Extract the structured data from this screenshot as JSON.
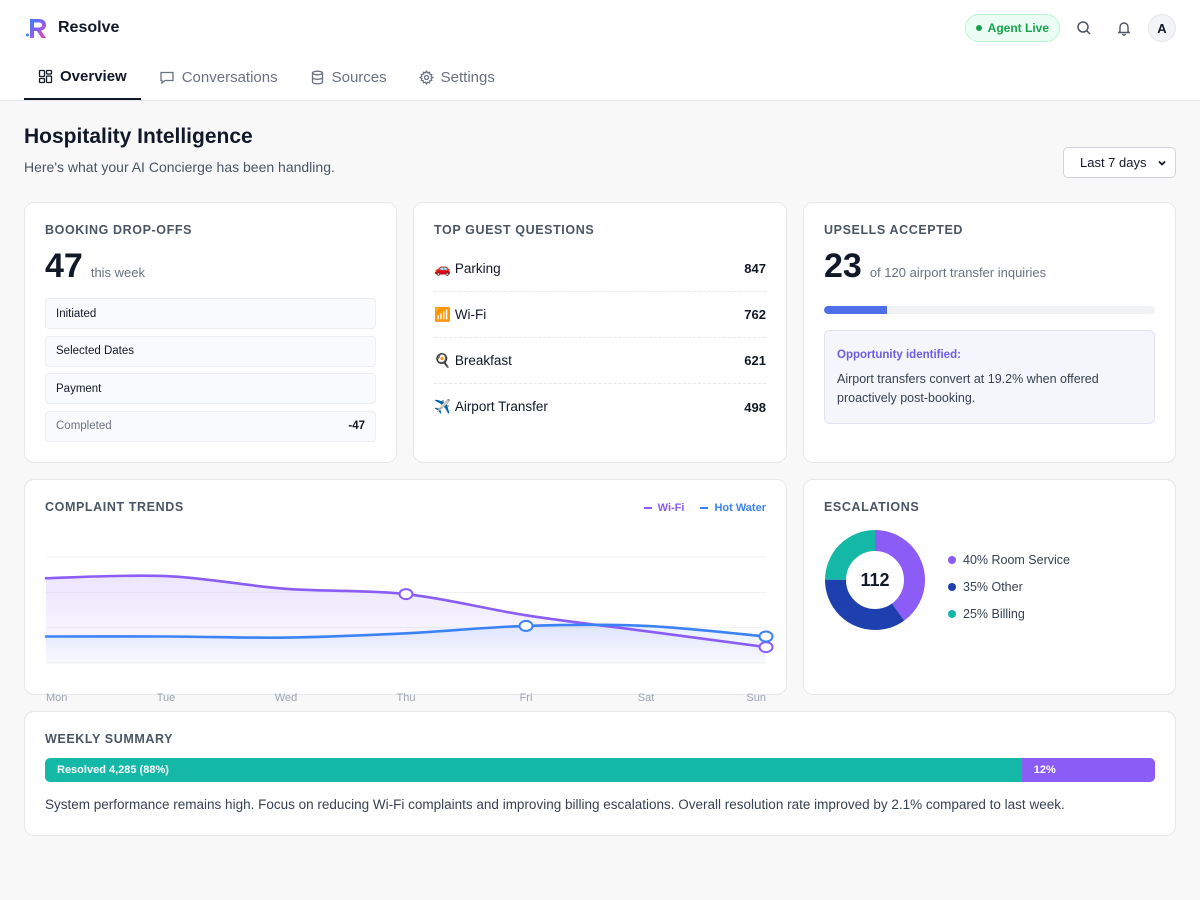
{
  "brand": {
    "name": "Resolve"
  },
  "header": {
    "status_label": "Agent Live",
    "avatar_initial": "A"
  },
  "tabs": [
    {
      "label": "Overview",
      "icon": "dashboard-icon"
    },
    {
      "label": "Conversations",
      "icon": "chat-icon"
    },
    {
      "label": "Sources",
      "icon": "database-icon"
    },
    {
      "label": "Settings",
      "icon": "gear-icon"
    }
  ],
  "page": {
    "title": "Hospitality Intelligence",
    "subtitle": "Here's what your AI Concierge has been handling.",
    "range": "Last 7 days"
  },
  "booking": {
    "title": "BOOKING DROP-OFFS",
    "value": "47",
    "suffix": "this week",
    "funnel": [
      {
        "label": "Initiated",
        "value": ""
      },
      {
        "label": "Selected Dates",
        "value": ""
      },
      {
        "label": "Payment",
        "value": ""
      },
      {
        "label": "Completed",
        "value": "-47"
      }
    ]
  },
  "questions": {
    "title": "TOP GUEST QUESTIONS",
    "items": [
      {
        "emoji": "🚗",
        "label": "Parking",
        "count": "847"
      },
      {
        "emoji": "📶",
        "label": "Wi-Fi",
        "count": "762"
      },
      {
        "emoji": "🍳",
        "label": "Breakfast",
        "count": "621"
      },
      {
        "emoji": "✈️",
        "label": "Airport Transfer",
        "count": "498"
      }
    ]
  },
  "upsells": {
    "title": "UPSELLS ACCEPTED",
    "value": "23",
    "suffix": "of 120 airport transfer inquiries",
    "progress": 0.19,
    "insight_head": "Opportunity identified:",
    "insight_body": "Airport transfers convert at 19.2% when offered proactively post-booking."
  },
  "complaints": {
    "title": "COMPLAINT TRENDS",
    "colors": {
      "wifi": "#8b5cf6",
      "water": "#3b82f6"
    }
  },
  "chart_data": {
    "type": "line",
    "x": [
      "Mon",
      "Tue",
      "Wed",
      "Thu",
      "Fri",
      "Sat",
      "Sun"
    ],
    "series": [
      {
        "name": "Wi-Fi",
        "values": [
          80,
          82,
          70,
          65,
          45,
          30,
          15
        ]
      },
      {
        "name": "Hot Water",
        "values": [
          25,
          25,
          24,
          28,
          35,
          35,
          25
        ]
      }
    ],
    "ylim": [
      0,
      100
    ],
    "grid": true,
    "legend": "top-right"
  },
  "escalations": {
    "title": "ESCALATIONS",
    "total": "112",
    "segments": [
      {
        "label": "40% Room Service",
        "pct": 40,
        "color": "#8b5cf6"
      },
      {
        "label": "35% Other",
        "pct": 35,
        "color": "#1e40af"
      },
      {
        "label": "25% Billing",
        "pct": 25,
        "color": "#14b8a6"
      }
    ]
  },
  "summary": {
    "title": "WEEKLY SUMMARY",
    "resolved_label": "Resolved 4,285 (88%)",
    "resolved_pct": 88,
    "other_label": "12%",
    "text": "System performance remains high. Focus on reducing Wi-Fi complaints and improving billing escalations. Overall resolution rate improved by 2.1% compared to last week."
  }
}
